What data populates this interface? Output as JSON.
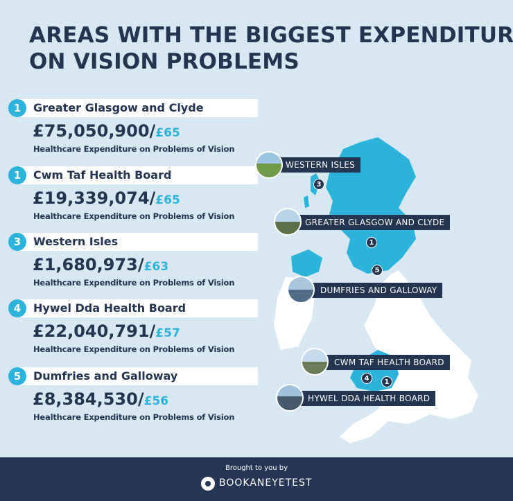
{
  "title": {
    "line1": "AREAS WITH THE BIGGEST EXPENDITURE",
    "line2": "ON VISION PROBLEMS"
  },
  "rankings": [
    {
      "rank": "1",
      "name": "Greater Glasgow and Clyde",
      "amount": "£75,050,900/",
      "per_person": "£65",
      "label": "Healthcare Expenditure on Problems of Vision"
    },
    {
      "rank": "1",
      "name": "Cwm Taf Health Board",
      "amount": "£19,339,074/",
      "per_person": "£65",
      "label": "Healthcare Expenditure on Problems of Vision"
    },
    {
      "rank": "3",
      "name": "Western Isles",
      "amount": "£1,680,973/",
      "per_person": "£63",
      "label": "Healthcare Expenditure on Problems of Vision"
    },
    {
      "rank": "4",
      "name": "Hywel Dda Health Board",
      "amount": "£22,040,791/",
      "per_person": "£57",
      "label": "Healthcare Expenditure on Problems of Vision"
    },
    {
      "rank": "5",
      "name": "Dumfries and Galloway",
      "amount": "£8,384,530/",
      "per_person": "£56",
      "label": "Healthcare Expenditure on Problems of Vision"
    }
  ],
  "map_labels": [
    {
      "text": "WESTERN ISLES",
      "pin": "3"
    },
    {
      "text": "GREATER GLASGOW AND CLYDE",
      "pin": "1"
    },
    {
      "text": "DUMFRIES AND GALLOWAY",
      "pin": "5"
    },
    {
      "text": "CWM TAF HEALTH BOARD",
      "pin": "1"
    },
    {
      "text": "HYWEL DDA HEALTH BOARD",
      "pin": "4"
    }
  ],
  "footer": {
    "brought_by": "Brought to you by",
    "brand": "BOOKANEYETEST"
  },
  "colors": {
    "navy": "#233550",
    "accent": "#2bb3dc",
    "background": "#d8e8f2"
  }
}
